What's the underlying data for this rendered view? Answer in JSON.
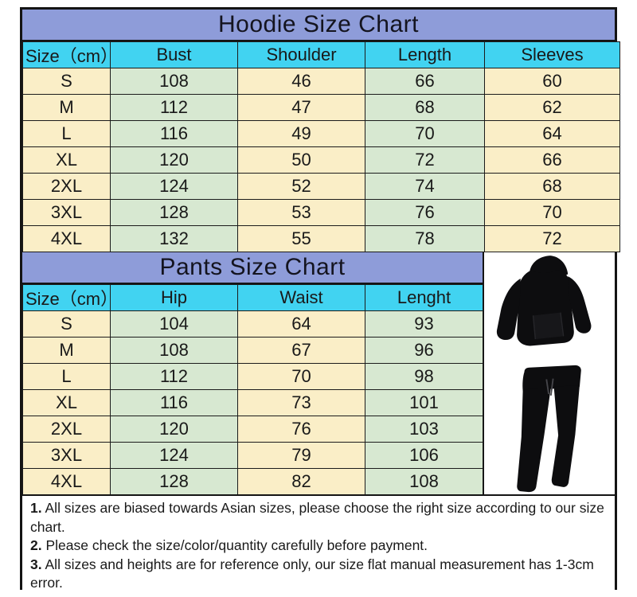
{
  "chart_data": [
    {
      "type": "table",
      "title": "Hoodie Size Chart",
      "columns": [
        "Size（cm）",
        "Bust",
        "Shoulder",
        "Length",
        "Sleeves"
      ],
      "rows": [
        [
          "S",
          "108",
          "46",
          "66",
          "60"
        ],
        [
          "M",
          "112",
          "47",
          "68",
          "62"
        ],
        [
          "L",
          "116",
          "49",
          "70",
          "64"
        ],
        [
          "XL",
          "120",
          "50",
          "72",
          "66"
        ],
        [
          "2XL",
          "124",
          "52",
          "74",
          "68"
        ],
        [
          "3XL",
          "128",
          "53",
          "76",
          "70"
        ],
        [
          "4XL",
          "132",
          "55",
          "78",
          "72"
        ]
      ]
    },
    {
      "type": "table",
      "title": "Pants Size Chart",
      "columns": [
        "Size（cm）",
        "Hip",
        "Waist",
        "Lenght"
      ],
      "rows": [
        [
          "S",
          "104",
          "64",
          "93"
        ],
        [
          "M",
          "108",
          "67",
          "96"
        ],
        [
          "L",
          "112",
          "70",
          "98"
        ],
        [
          "XL",
          "116",
          "73",
          "101"
        ],
        [
          "2XL",
          "120",
          "76",
          "103"
        ],
        [
          "3XL",
          "124",
          "79",
          "106"
        ],
        [
          "4XL",
          "128",
          "82",
          "108"
        ]
      ]
    }
  ],
  "product_image": {
    "hoodie_icon": "black-pullover-hoodie",
    "pants_icon": "black-jogger-pants"
  },
  "notes": {
    "items": [
      {
        "num": "1.",
        "text": " All sizes are biased towards Asian sizes, please choose the right size according to our size chart."
      },
      {
        "num": "2.",
        "text": " Please check the size/color/quantity carefully before payment."
      },
      {
        "num": "3.",
        "text": " All sizes and heights are for reference only, our size flat manual measurement has 1-3cm error."
      }
    ]
  },
  "colors": {
    "title_bg": "#8e9cd9",
    "header_bg": "#41d3f1",
    "cell_cream": "#faeec7",
    "cell_green": "#d7e8d1",
    "grid_line": "#1b1b1b",
    "text": "#191919",
    "panel_bg": "#ffffff",
    "garment": "#0d0d0f"
  }
}
